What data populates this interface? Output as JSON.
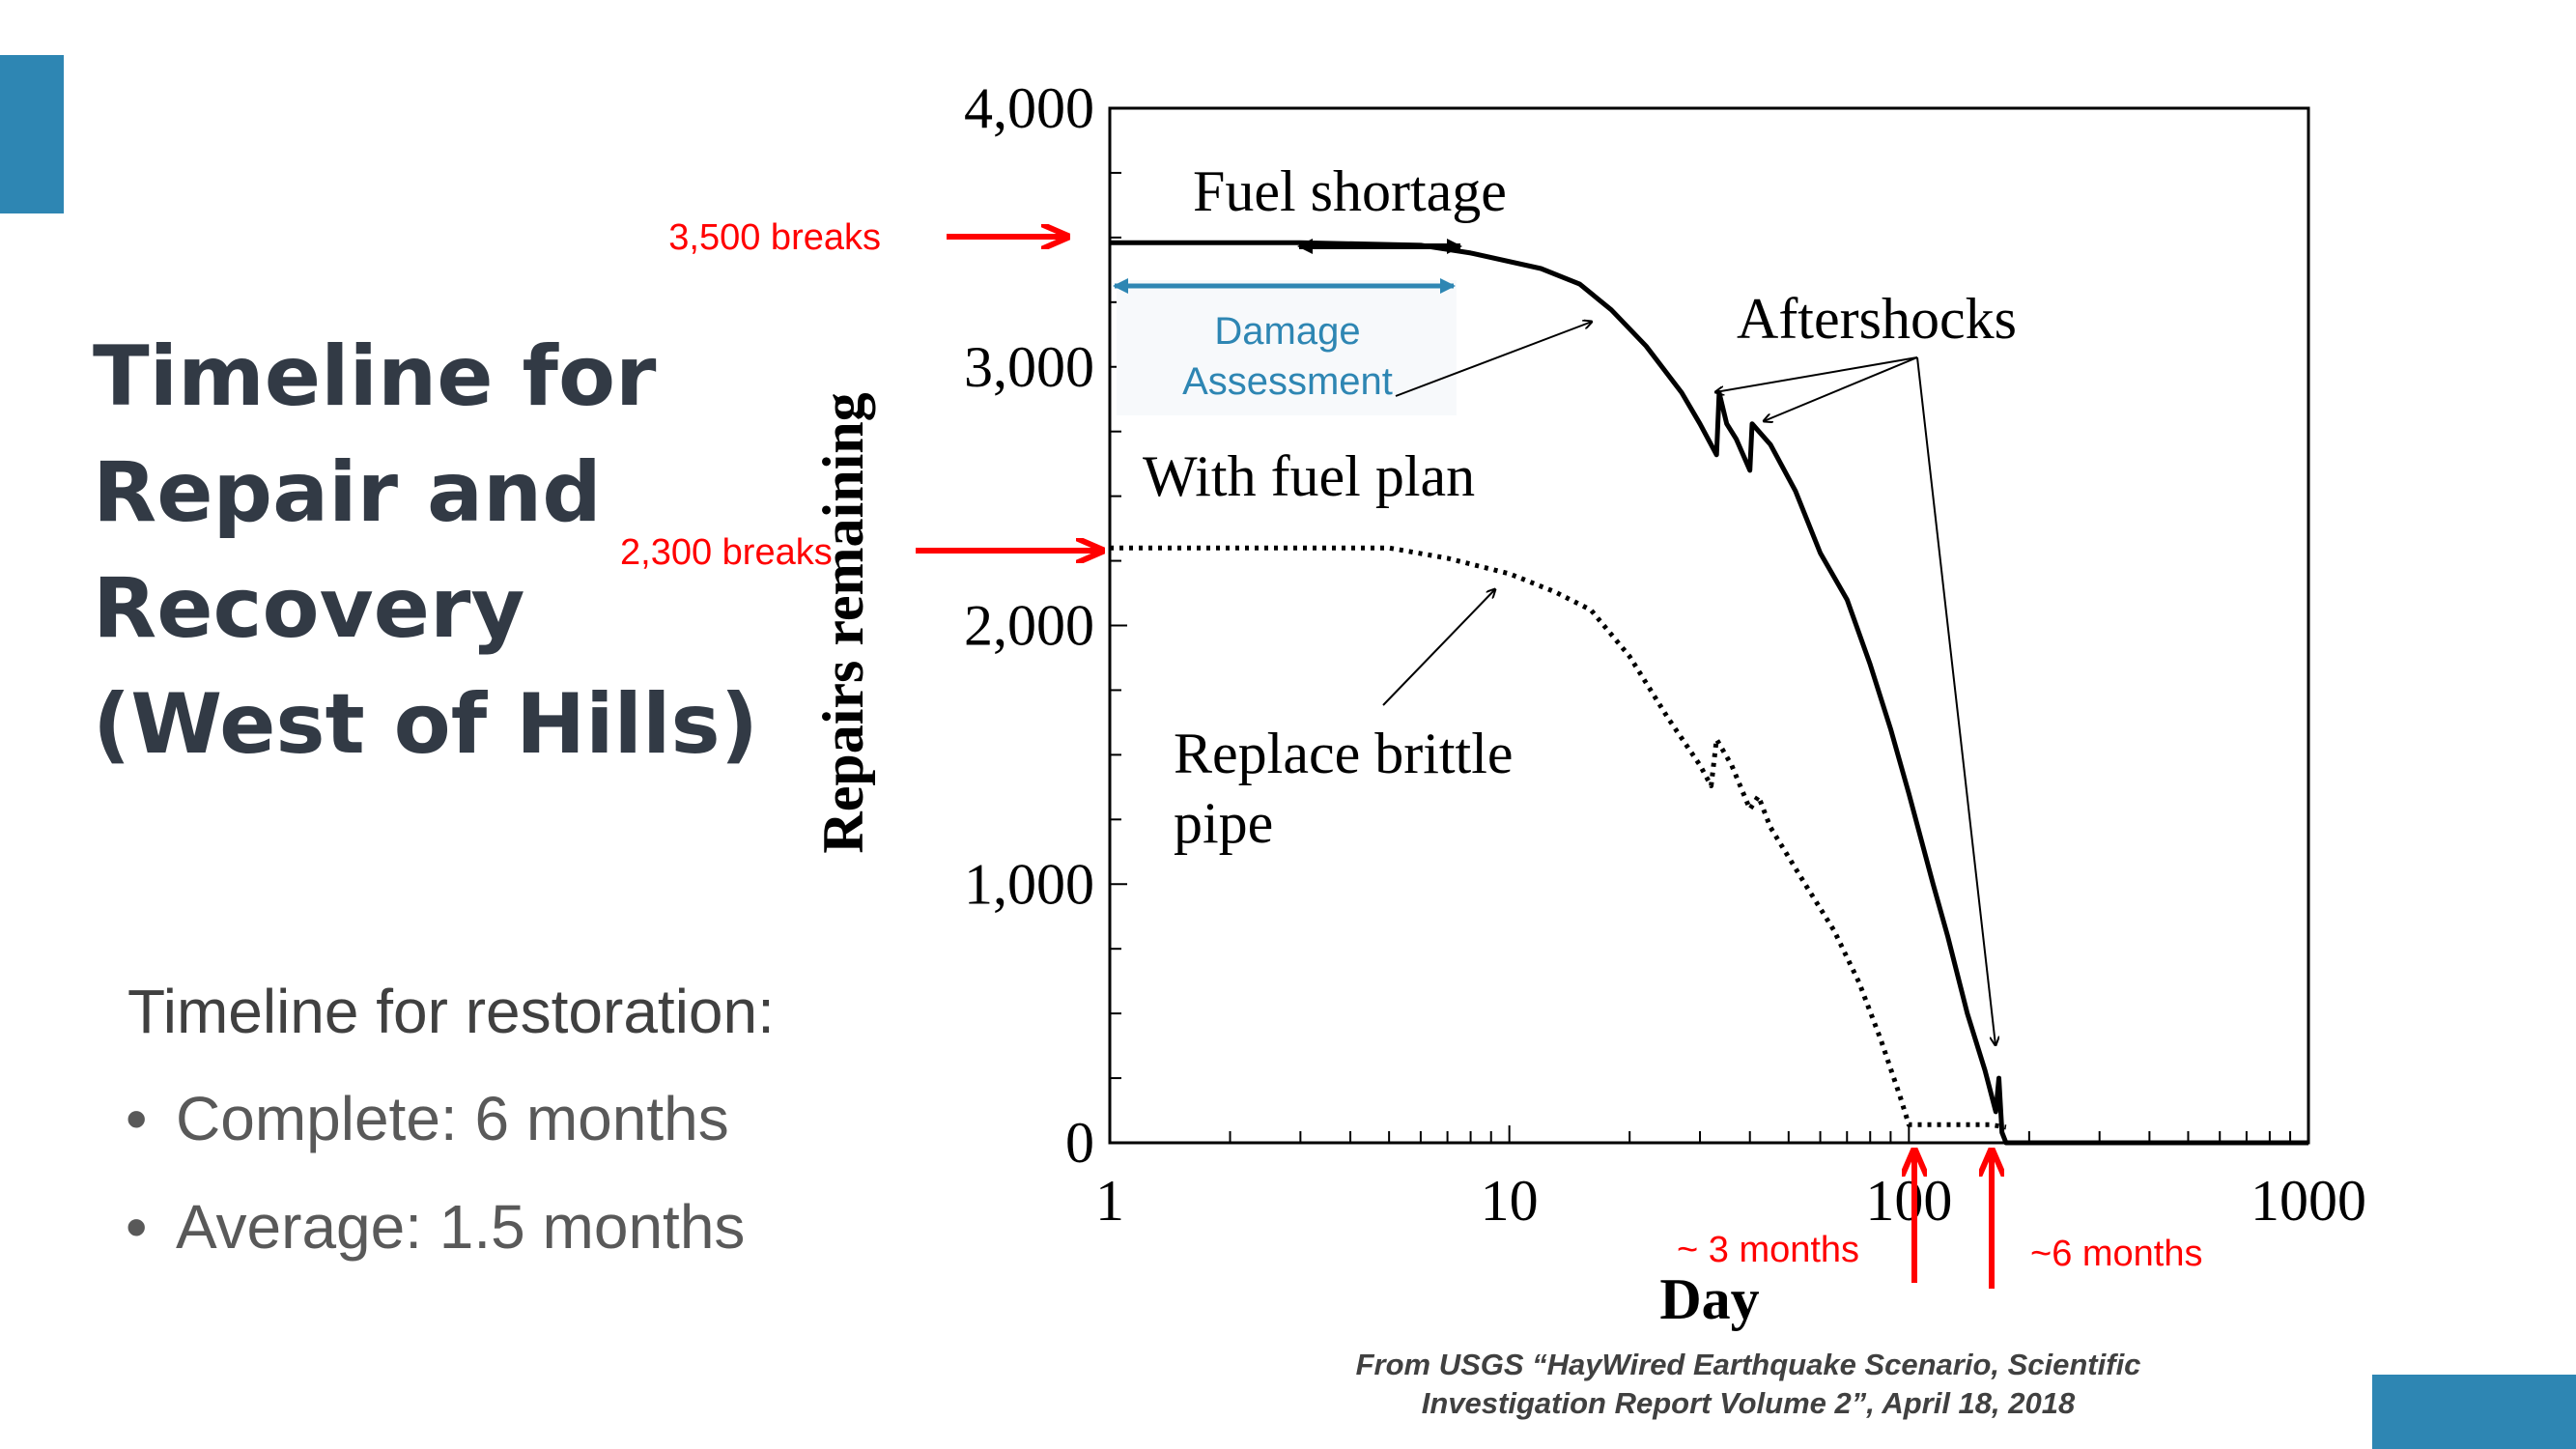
{
  "slide": {
    "title_lines": [
      "Timeline for",
      "Repair and",
      "Recovery",
      "(West of Hills)"
    ],
    "subhead": "Timeline for restoration:",
    "bullets": [
      {
        "label": "Complete: 6 months"
      },
      {
        "label": "Average: 1.5 months"
      }
    ],
    "source_lines": [
      "From USGS “HayWired Earthquake Scenario, Scientific",
      "Investigation Report Volume 2”, April 18, 2018"
    ],
    "colors": {
      "accent": "#2e86b3",
      "title": "#323a45",
      "callout": "#ff0000",
      "damage": "#2e86b3"
    }
  },
  "chart_data": {
    "type": "line",
    "xlabel": "Day",
    "ylabel": "Repairs remaining",
    "x_scale": "log",
    "xlim": [
      1,
      1000
    ],
    "ylim": [
      0,
      4000
    ],
    "x_ticks": [
      "1",
      "10",
      "100",
      "1000"
    ],
    "y_ticks": [
      "0",
      "1,000",
      "2,000",
      "3,000",
      "4,000"
    ],
    "grid": false,
    "series": [
      {
        "name": "With fuel plan",
        "style": "solid",
        "points": [
          [
            1,
            3480
          ],
          [
            3,
            3480
          ],
          [
            6,
            3470
          ],
          [
            8,
            3440
          ],
          [
            12,
            3380
          ],
          [
            15,
            3320
          ],
          [
            18,
            3220
          ],
          [
            22,
            3080
          ],
          [
            27,
            2900
          ],
          [
            30,
            2780
          ],
          [
            33,
            2660
          ],
          [
            33.5,
            2900
          ],
          [
            35,
            2780
          ],
          [
            37,
            2720
          ],
          [
            40,
            2600
          ],
          [
            40.5,
            2780
          ],
          [
            45,
            2700
          ],
          [
            52,
            2520
          ],
          [
            60,
            2280
          ],
          [
            70,
            2100
          ],
          [
            80,
            1850
          ],
          [
            90,
            1600
          ],
          [
            100,
            1350
          ],
          [
            115,
            1000
          ],
          [
            125,
            800
          ],
          [
            140,
            500
          ],
          [
            155,
            280
          ],
          [
            165,
            120
          ],
          [
            168,
            250
          ],
          [
            171,
            40
          ],
          [
            175,
            0
          ],
          [
            300,
            0
          ],
          [
            600,
            0
          ],
          [
            1000,
            0
          ]
        ]
      },
      {
        "name": "Replace brittle pipe",
        "style": "dotted",
        "points": [
          [
            1,
            2300
          ],
          [
            5,
            2300
          ],
          [
            7,
            2260
          ],
          [
            10,
            2200
          ],
          [
            13,
            2130
          ],
          [
            16,
            2060
          ],
          [
            20,
            1880
          ],
          [
            25,
            1640
          ],
          [
            30,
            1460
          ],
          [
            32,
            1380
          ],
          [
            33,
            1560
          ],
          [
            36,
            1460
          ],
          [
            40,
            1290
          ],
          [
            42,
            1340
          ],
          [
            45,
            1220
          ],
          [
            55,
            1000
          ],
          [
            65,
            820
          ],
          [
            75,
            620
          ],
          [
            85,
            400
          ],
          [
            95,
            180
          ],
          [
            100,
            70
          ],
          [
            115,
            70
          ],
          [
            140,
            70
          ],
          [
            160,
            70
          ],
          [
            175,
            60
          ]
        ]
      }
    ],
    "annotations": [
      {
        "text": "Fuel shortage"
      },
      {
        "text": "Damage"
      },
      {
        "text": "Assessment"
      },
      {
        "text": "With fuel plan"
      },
      {
        "text": "Aftershocks"
      },
      {
        "text": "Replace brittle"
      },
      {
        "text": "pipe"
      }
    ],
    "callouts": [
      {
        "text": "3,500 breaks",
        "y": 3500
      },
      {
        "text": "2,300 breaks",
        "y": 2300
      },
      {
        "text": "~ 3 months",
        "x": 100
      },
      {
        "text": "~6 months",
        "x": 180
      }
    ]
  }
}
